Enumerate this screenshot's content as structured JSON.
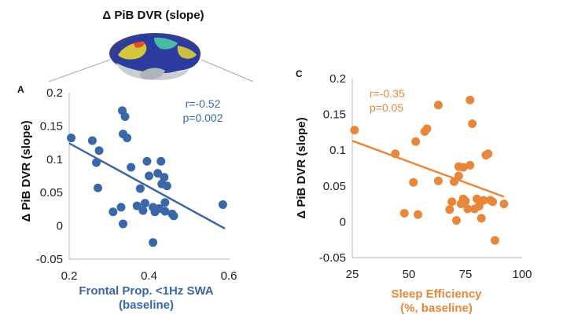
{
  "figure": {
    "title": "Δ PiB DVR (slope)"
  },
  "chart_data": [
    {
      "type": "scatter",
      "panel_label": "A",
      "color": "#3a67a8",
      "ylabel": "Δ PiB DVR (slope)",
      "xlabel_line1": "Frontal Prop. <1Hz SWA",
      "xlabel_line2": "(baseline)",
      "xlim": [
        0.2,
        0.6
      ],
      "ylim": [
        -0.05,
        0.2
      ],
      "xticks": [
        "0.2",
        "0.4",
        "0.6"
      ],
      "xtick_values": [
        0.2,
        0.4,
        0.6
      ],
      "yticks": [
        "0.2",
        "0.15",
        "0.1",
        "0.05",
        "0",
        "-0.05"
      ],
      "ytick_values": [
        0.2,
        0.15,
        0.1,
        0.05,
        0,
        -0.05
      ],
      "stat_r": "r=-0.52",
      "stat_p": "p=0.002",
      "trend": {
        "x": [
          0.2,
          0.59
        ],
        "y": [
          0.124,
          -0.004
        ]
      },
      "points": [
        {
          "x": 0.205,
          "y": 0.132
        },
        {
          "x": 0.258,
          "y": 0.128
        },
        {
          "x": 0.268,
          "y": 0.095
        },
        {
          "x": 0.275,
          "y": 0.113
        },
        {
          "x": 0.272,
          "y": 0.057
        },
        {
          "x": 0.31,
          "y": 0.021
        },
        {
          "x": 0.333,
          "y": 0.173
        },
        {
          "x": 0.34,
          "y": 0.164
        },
        {
          "x": 0.335,
          "y": 0.138
        },
        {
          "x": 0.345,
          "y": 0.132
        },
        {
          "x": 0.33,
          "y": 0.028
        },
        {
          "x": 0.335,
          "y": 0.003
        },
        {
          "x": 0.355,
          "y": 0.088
        },
        {
          "x": 0.37,
          "y": 0.03
        },
        {
          "x": 0.378,
          "y": 0.056
        },
        {
          "x": 0.385,
          "y": 0.023
        },
        {
          "x": 0.39,
          "y": 0.034
        },
        {
          "x": 0.395,
          "y": 0.097
        },
        {
          "x": 0.4,
          "y": 0.075
        },
        {
          "x": 0.41,
          "y": 0.028
        },
        {
          "x": 0.41,
          "y": -0.025
        },
        {
          "x": 0.415,
          "y": 0.021
        },
        {
          "x": 0.422,
          "y": 0.079
        },
        {
          "x": 0.425,
          "y": 0.026
        },
        {
          "x": 0.43,
          "y": 0.097
        },
        {
          "x": 0.432,
          "y": 0.063
        },
        {
          "x": 0.438,
          "y": 0.073
        },
        {
          "x": 0.44,
          "y": 0.022
        },
        {
          "x": 0.44,
          "y": 0.035
        },
        {
          "x": 0.445,
          "y": 0.06
        },
        {
          "x": 0.458,
          "y": 0.018
        },
        {
          "x": 0.462,
          "y": 0.015
        },
        {
          "x": 0.585,
          "y": 0.032
        }
      ]
    },
    {
      "type": "scatter",
      "panel_label": "C",
      "color": "#e8873a",
      "ylabel": "Δ PiB DVR (slope)",
      "xlabel_line1": "Sleep Efficiency",
      "xlabel_line2": "(%, baseline)",
      "xlim": [
        25,
        100
      ],
      "ylim": [
        -0.05,
        0.2
      ],
      "xticks": [
        "25",
        "50",
        "75",
        "100"
      ],
      "xtick_values": [
        25,
        50,
        75,
        100
      ],
      "yticks": [
        "0.2",
        "0.15",
        "0.1",
        "0.05",
        "0",
        "-0.05"
      ],
      "ytick_values": [
        0.2,
        0.15,
        0.1,
        0.05,
        0,
        -0.05
      ],
      "stat_r": "r=-0.35",
      "stat_p": "p=0.05",
      "trend": {
        "x": [
          25,
          92
        ],
        "y": [
          0.113,
          0.035
        ]
      },
      "points": [
        {
          "x": 26,
          "y": 0.128
        },
        {
          "x": 44,
          "y": 0.095
        },
        {
          "x": 48,
          "y": 0.012
        },
        {
          "x": 52,
          "y": 0.055
        },
        {
          "x": 53,
          "y": 0.112
        },
        {
          "x": 54,
          "y": 0.01
        },
        {
          "x": 57,
          "y": 0.126
        },
        {
          "x": 58,
          "y": 0.13
        },
        {
          "x": 63,
          "y": 0.163
        },
        {
          "x": 63,
          "y": 0.057
        },
        {
          "x": 68,
          "y": 0.017
        },
        {
          "x": 69,
          "y": 0.028
        },
        {
          "x": 70,
          "y": 0.056
        },
        {
          "x": 71,
          "y": 0.002
        },
        {
          "x": 72,
          "y": 0.064
        },
        {
          "x": 72,
          "y": 0.077
        },
        {
          "x": 73,
          "y": 0.025
        },
        {
          "x": 74,
          "y": 0.032
        },
        {
          "x": 74,
          "y": 0.076
        },
        {
          "x": 75,
          "y": 0.029
        },
        {
          "x": 76,
          "y": 0.018
        },
        {
          "x": 77,
          "y": 0.079
        },
        {
          "x": 77,
          "y": 0.17
        },
        {
          "x": 78,
          "y": 0.137
        },
        {
          "x": 79,
          "y": 0.018
        },
        {
          "x": 80,
          "y": 0.032
        },
        {
          "x": 81,
          "y": 0.022
        },
        {
          "x": 82,
          "y": 0.005
        },
        {
          "x": 83,
          "y": 0.03
        },
        {
          "x": 84,
          "y": 0.093
        },
        {
          "x": 85,
          "y": 0.095
        },
        {
          "x": 86,
          "y": 0.03
        },
        {
          "x": 87,
          "y": 0.028
        },
        {
          "x": 88,
          "y": -0.026
        },
        {
          "x": 92,
          "y": 0.025
        }
      ]
    }
  ]
}
